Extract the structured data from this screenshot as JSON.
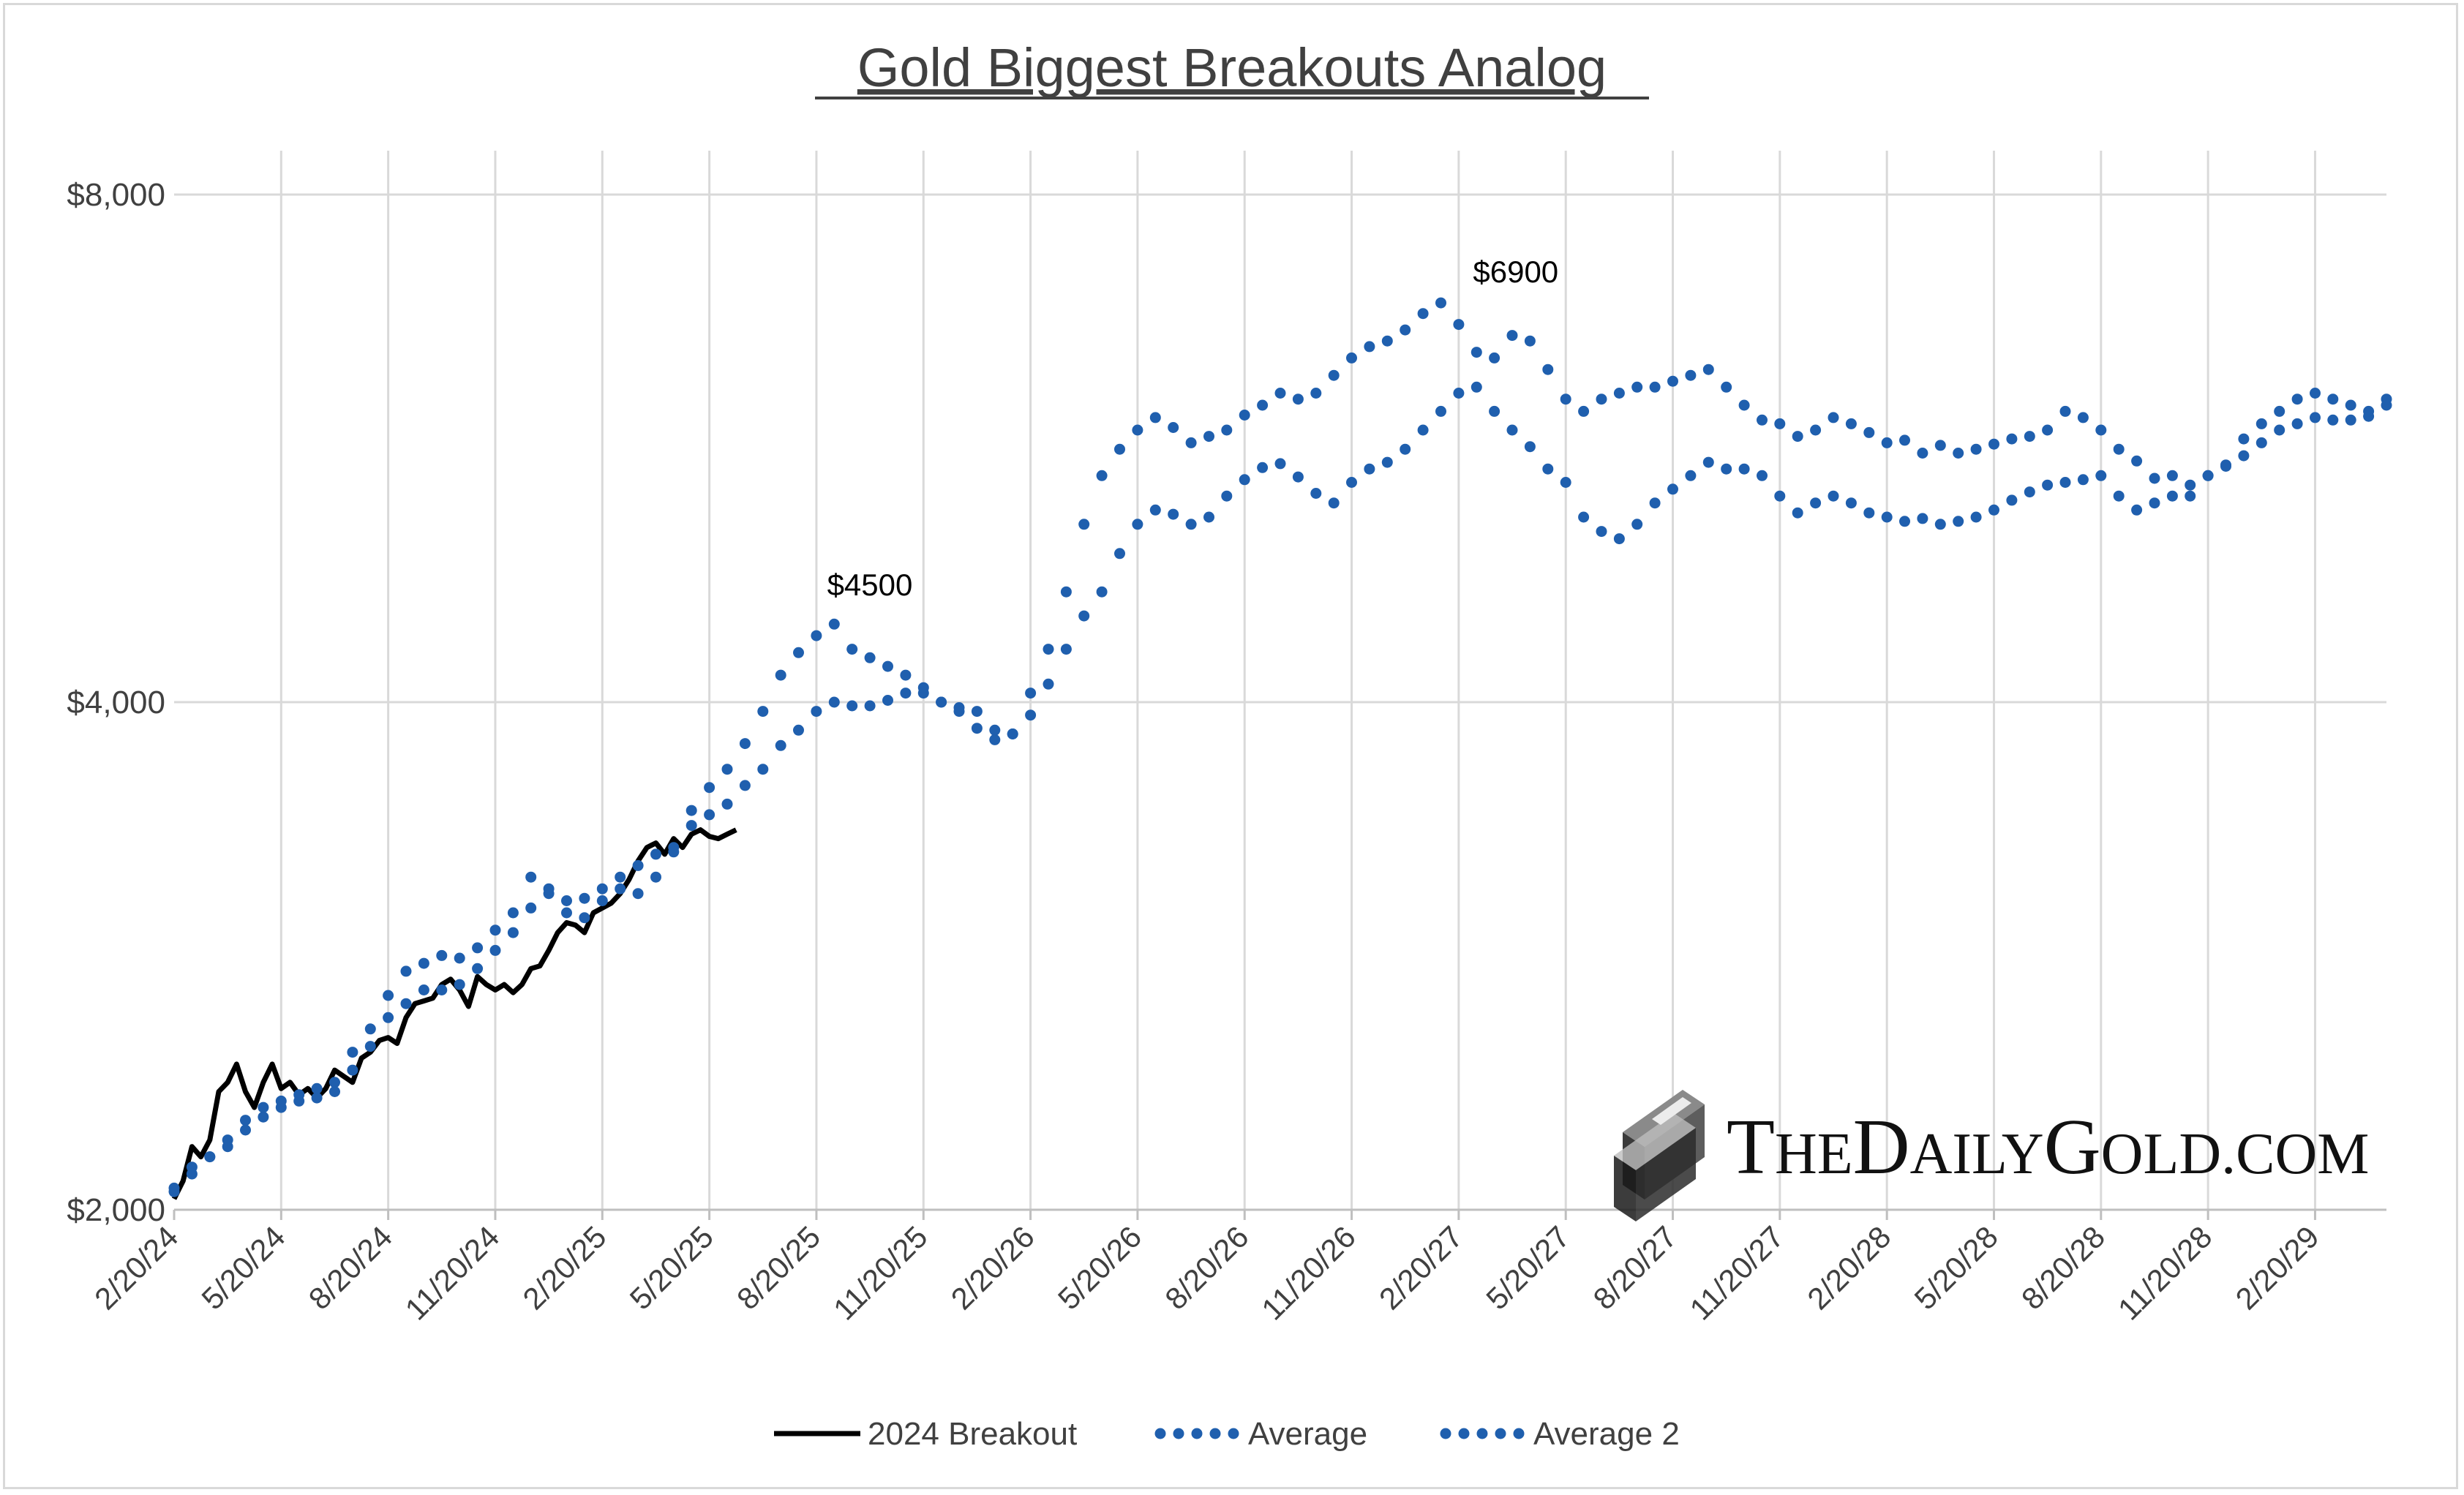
{
  "chart_data": {
    "type": "line",
    "title": "Gold Biggest Breakouts Analog",
    "xlabel": "",
    "ylabel": "",
    "x_start": "2/20/24",
    "x_end": "4/20/29",
    "xlim": [
      0,
      62
    ],
    "ylim": [
      2000,
      8000
    ],
    "y_scale": "log",
    "y_ticks": [
      {
        "value": 2000,
        "label": "$2,000"
      },
      {
        "value": 4000,
        "label": "$4,000"
      },
      {
        "value": 8000,
        "label": "$8,000"
      }
    ],
    "x_ticks": [
      {
        "value": 0,
        "label": "2/20/24"
      },
      {
        "value": 3,
        "label": "5/20/24"
      },
      {
        "value": 6,
        "label": "8/20/24"
      },
      {
        "value": 9,
        "label": "11/20/24"
      },
      {
        "value": 12,
        "label": "2/20/25"
      },
      {
        "value": 15,
        "label": "5/20/25"
      },
      {
        "value": 18,
        "label": "8/20/25"
      },
      {
        "value": 21,
        "label": "11/20/25"
      },
      {
        "value": 24,
        "label": "2/20/26"
      },
      {
        "value": 27,
        "label": "5/20/26"
      },
      {
        "value": 30,
        "label": "8/20/26"
      },
      {
        "value": 33,
        "label": "11/20/26"
      },
      {
        "value": 36,
        "label": "2/20/27"
      },
      {
        "value": 39,
        "label": "5/20/27"
      },
      {
        "value": 42,
        "label": "8/20/27"
      },
      {
        "value": 45,
        "label": "11/20/27"
      },
      {
        "value": 48,
        "label": "2/20/28"
      },
      {
        "value": 51,
        "label": "5/20/28"
      },
      {
        "value": 54,
        "label": "8/20/28"
      },
      {
        "value": 57,
        "label": "11/20/28"
      },
      {
        "value": 60,
        "label": "2/20/29"
      }
    ],
    "grid": {
      "vertical": true,
      "horizontal": true
    },
    "legend_position": "bottom-center",
    "series": [
      {
        "name": "2024 Breakout",
        "style": "solid",
        "color": "#000000",
        "x": [
          0,
          0.25,
          0.5,
          0.75,
          1.0,
          1.25,
          1.5,
          1.75,
          2.0,
          2.25,
          2.5,
          2.75,
          3.0,
          3.25,
          3.5,
          3.75,
          4.0,
          4.25,
          4.5,
          4.75,
          5.0,
          5.25,
          5.5,
          5.75,
          6.0,
          6.25,
          6.5,
          6.75,
          7.0,
          7.25,
          7.5,
          7.75,
          8.0,
          8.25,
          8.5,
          8.75,
          9.0,
          9.25,
          9.5,
          9.75,
          10.0,
          10.25,
          10.5,
          10.75,
          11.0,
          11.25,
          11.5,
          11.75,
          12.0,
          12.25,
          12.5,
          12.75,
          13.0,
          13.25,
          13.5,
          13.75,
          14.0,
          14.25,
          14.5,
          14.75,
          15.0,
          15.25,
          15.5,
          15.75
        ],
        "values": [
          2030,
          2080,
          2180,
          2150,
          2200,
          2350,
          2380,
          2440,
          2350,
          2300,
          2380,
          2440,
          2360,
          2380,
          2340,
          2360,
          2330,
          2360,
          2420,
          2400,
          2380,
          2460,
          2480,
          2520,
          2530,
          2510,
          2600,
          2650,
          2660,
          2670,
          2720,
          2740,
          2700,
          2640,
          2750,
          2720,
          2700,
          2720,
          2690,
          2720,
          2780,
          2790,
          2850,
          2920,
          2960,
          2950,
          2920,
          3000,
          3020,
          3040,
          3080,
          3140,
          3220,
          3280,
          3300,
          3250,
          3320,
          3280,
          3340,
          3360,
          3330,
          3320,
          3340,
          3360
        ]
      },
      {
        "name": "Average",
        "style": "dotted",
        "color": "#1f5fae",
        "x": [
          0.0,
          0.5,
          1.0,
          1.5,
          2.0,
          2.5,
          3.0,
          3.5,
          4.0,
          4.5,
          5.0,
          5.5,
          6.0,
          6.5,
          7.0,
          7.5,
          8.0,
          8.5,
          9.0,
          9.5,
          10.0,
          10.5,
          11.0,
          11.5,
          12.0,
          12.5,
          13.0,
          13.5,
          14.0,
          14.5,
          15.0,
          15.5,
          16.0,
          16.5,
          17.0,
          17.5,
          18.0,
          18.5,
          19.0,
          19.5,
          20.0,
          20.5,
          21.0,
          21.5,
          22.0,
          22.5,
          23.0,
          23.5,
          24.0,
          24.5,
          25.0,
          25.5,
          26.0,
          26.5,
          27.0,
          27.5,
          28.0,
          28.5,
          29.0,
          29.5,
          30.0,
          30.5,
          31.0,
          31.5,
          32.0,
          32.5,
          33.0,
          33.5,
          34.0,
          34.5,
          35.0,
          35.5,
          36.0,
          36.5,
          37.0,
          37.5,
          38.0,
          38.5,
          39.0,
          39.5,
          40.0,
          40.5,
          41.0,
          41.5,
          42.0,
          42.5,
          43.0,
          43.5,
          44.0,
          44.5,
          45.0,
          45.5,
          46.0,
          46.5,
          47.0,
          47.5,
          48.0,
          48.5,
          49.0,
          49.5,
          50.0,
          50.5,
          51.0,
          51.5,
          52.0,
          52.5,
          53.0,
          53.5,
          54.0,
          54.5,
          55.0,
          55.5,
          56.0,
          56.5,
          57.0,
          57.5,
          58.0,
          58.5,
          59.0,
          59.5,
          60.0,
          60.5,
          61.0,
          61.5,
          62.0
        ],
        "values": [
          2050,
          2120,
          2150,
          2180,
          2230,
          2270,
          2300,
          2320,
          2330,
          2350,
          2420,
          2500,
          2600,
          2650,
          2700,
          2700,
          2720,
          2780,
          2850,
          2920,
          3020,
          3080,
          3050,
          3060,
          3100,
          3150,
          3200,
          3250,
          3280,
          3380,
          3430,
          3480,
          3570,
          3650,
          3770,
          3850,
          3950,
          4000,
          3980,
          3980,
          4010,
          4050,
          4050,
          4000,
          3970,
          3860,
          3800,
          3830,
          3930,
          4100,
          4300,
          4500,
          4650,
          4900,
          5100,
          5200,
          5170,
          5100,
          5150,
          5300,
          5420,
          5510,
          5540,
          5440,
          5320,
          5250,
          5400,
          5500,
          5550,
          5650,
          5800,
          5950,
          6100,
          6150,
          5950,
          5800,
          5670,
          5500,
          5400,
          5150,
          5050,
          5000,
          5100,
          5250,
          5350,
          5450,
          5550,
          5500,
          5500,
          5450,
          5300,
          5180,
          5250,
          5300,
          5250,
          5180,
          5150,
          5120,
          5140,
          5100,
          5120,
          5150,
          5200,
          5270,
          5330,
          5380,
          5400,
          5420,
          5450,
          5300,
          5200,
          5250,
          5300,
          5380,
          5450,
          5530,
          5600,
          5700,
          5800,
          5850,
          5900,
          5880,
          5880,
          5910,
          6000
        ]
      },
      {
        "name": "Average 2",
        "style": "dotted",
        "color": "#1f5fae",
        "x": [
          0.0,
          0.5,
          1.0,
          1.5,
          2.0,
          2.5,
          3.0,
          3.5,
          4.0,
          4.5,
          5.0,
          5.5,
          6.0,
          6.5,
          7.0,
          7.5,
          8.0,
          8.5,
          9.0,
          9.5,
          10.0,
          10.5,
          11.0,
          11.5,
          12.0,
          12.5,
          13.0,
          13.5,
          14.0,
          14.5,
          15.0,
          15.5,
          16.0,
          16.5,
          17.0,
          17.5,
          18.0,
          18.5,
          19.0,
          19.5,
          20.0,
          20.5,
          21.0,
          21.5,
          22.0,
          22.5,
          23.0,
          23.5,
          24.0,
          24.5,
          25.0,
          25.5,
          26.0,
          26.5,
          27.0,
          27.5,
          28.0,
          28.5,
          29.0,
          29.5,
          30.0,
          30.5,
          31.0,
          31.5,
          32.0,
          32.5,
          33.0,
          33.5,
          34.0,
          34.5,
          35.0,
          35.5,
          36.0,
          36.5,
          37.0,
          37.5,
          38.0,
          38.5,
          39.0,
          39.5,
          40.0,
          40.5,
          41.0,
          41.5,
          42.0,
          42.5,
          43.0,
          43.5,
          44.0,
          44.5,
          45.0,
          45.5,
          46.0,
          46.5,
          47.0,
          47.5,
          48.0,
          48.5,
          49.0,
          49.5,
          50.0,
          50.5,
          51.0,
          51.5,
          52.0,
          52.5,
          53.0,
          53.5,
          54.0,
          54.5,
          55.0,
          55.5,
          56.0,
          56.5,
          57.0,
          57.5,
          58.0,
          58.5,
          59.0,
          59.5,
          60.0,
          60.5,
          61.0,
          61.5,
          62.0
        ],
        "values": [
          2060,
          2100,
          2150,
          2200,
          2260,
          2300,
          2320,
          2340,
          2360,
          2380,
          2480,
          2560,
          2680,
          2770,
          2800,
          2830,
          2820,
          2860,
          2930,
          3000,
          3150,
          3100,
          3000,
          2980,
          3050,
          3100,
          3080,
          3150,
          3260,
          3450,
          3560,
          3650,
          3780,
          3950,
          4150,
          4280,
          4380,
          4450,
          4300,
          4250,
          4200,
          4150,
          4080,
          4000,
          3950,
          3950,
          3850,
          3830,
          4050,
          4300,
          4650,
          5100,
          5450,
          5650,
          5800,
          5900,
          5820,
          5700,
          5750,
          5800,
          5920,
          6000,
          6100,
          6050,
          6100,
          6250,
          6400,
          6500,
          6550,
          6650,
          6800,
          6900,
          6700,
          6450,
          6400,
          6600,
          6550,
          6300,
          6050,
          5950,
          6050,
          6100,
          6150,
          6150,
          6200,
          6250,
          6300,
          6150,
          6000,
          5880,
          5850,
          5750,
          5800,
          5900,
          5850,
          5780,
          5700,
          5720,
          5620,
          5680,
          5620,
          5650,
          5690,
          5730,
          5750,
          5800,
          5950,
          5900,
          5800,
          5650,
          5560,
          5430,
          5450,
          5300,
          5450,
          5520,
          5730,
          5850,
          5950,
          6050,
          6100,
          6050,
          6000,
          5950,
          6050
        ]
      }
    ],
    "annotations": [
      {
        "x": 18.3,
        "y": 4500,
        "text": "$4500"
      },
      {
        "x": 36.4,
        "y": 6900,
        "text": "$6900"
      }
    ]
  },
  "watermark": {
    "text": "TheDailyGold.com",
    "caps": "THEDAILYGOLD.COM",
    "icon": "gold-bar-icon"
  }
}
